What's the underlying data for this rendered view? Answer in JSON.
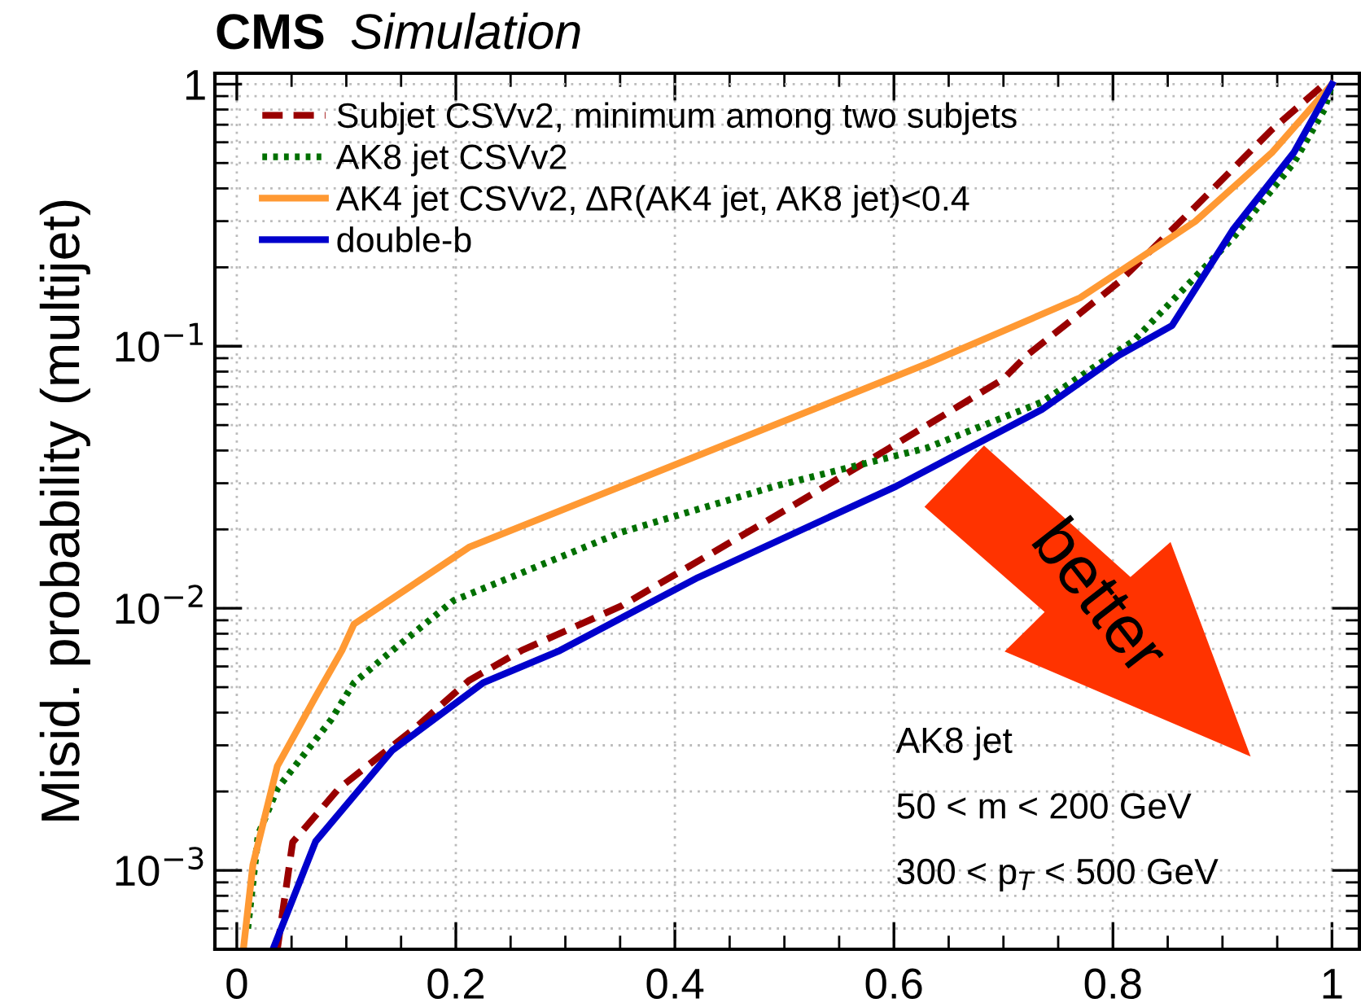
{
  "chart_data": {
    "type": "line",
    "title": "CMS",
    "subtitle": "Simulation",
    "ylabel": "Misid. probability (multijet)",
    "series": [
      {
        "name": "Subjet CSVv2, minimum among two subjets",
        "color": "#990000",
        "line_style": "dashed",
        "x": [
          0.037,
          0.051,
          0.093,
          0.163,
          0.212,
          0.26,
          0.351,
          0.491,
          0.596,
          0.7,
          0.721,
          0.756,
          0.805,
          0.875,
          0.945,
          0.993
        ],
        "values": [
          0.0005,
          0.00128,
          0.00205,
          0.0035,
          0.0053,
          0.0069,
          0.0102,
          0.0224,
          0.0409,
          0.075,
          0.092,
          0.12,
          0.175,
          0.34,
          0.67,
          1
        ]
      },
      {
        "name": "AK8 jet CSVv2",
        "color": "#007000",
        "line_style": "dotted",
        "x": [
          0.01,
          0.0196,
          0.037,
          0.086,
          0.107,
          0.142,
          0.198,
          0.351,
          0.491,
          0.63,
          0.735,
          0.819,
          0.91,
          0.965,
          0.993,
          1.0
        ],
        "values": [
          0.0006,
          0.00137,
          0.00205,
          0.00375,
          0.0052,
          0.0069,
          0.0107,
          0.0195,
          0.0292,
          0.0409,
          0.0612,
          0.105,
          0.26,
          0.5,
          0.8,
          1
        ]
      },
      {
        "name": "AK4 jet CSVv2, ΔR(AK4 jet, AK8 jet)<0.4",
        "color": "#ff9933",
        "line_style": "solid",
        "x": [
          0.006,
          0.0147,
          0.037,
          0.072,
          0.096,
          0.107,
          0.212,
          0.351,
          0.491,
          0.63,
          0.77,
          0.875,
          0.945,
          1.0
        ],
        "values": [
          0.0005,
          0.00105,
          0.0025,
          0.0046,
          0.0069,
          0.0087,
          0.0171,
          0.0292,
          0.0501,
          0.0857,
          0.153,
          0.299,
          0.547,
          1
        ]
      },
      {
        "name": "double-b",
        "color": "#0000cc",
        "line_style": "solid",
        "x": [
          0.033,
          0.072,
          0.142,
          0.225,
          0.295,
          0.421,
          0.602,
          0.735,
          0.805,
          0.854,
          0.91,
          0.965,
          1.0
        ],
        "values": [
          0.0005,
          0.00129,
          0.00287,
          0.0052,
          0.0069,
          0.0131,
          0.0292,
          0.0573,
          0.092,
          0.12,
          0.28,
          0.547,
          1
        ]
      }
    ],
    "xlim": [
      -0.02,
      1.025
    ],
    "xticks": [
      0,
      0.2,
      0.4,
      0.6,
      0.8,
      1
    ],
    "ylim": [
      0.0005,
      1.1
    ],
    "log": true,
    "yticks": [
      {
        "value": 0.001,
        "label": "10$^{−3}$"
      },
      {
        "value": 0.01,
        "label": "10$^{−2}$"
      },
      {
        "value": 0.1,
        "label": "10$^{−1}$"
      },
      1
    ],
    "grid": true,
    "legend": "top left",
    "marker": "none",
    "annotations": [
      "better",
      "AK8 jet",
      "50 < m < 200 GeV",
      "300 < p$_{T}$ < 500 GeV"
    ]
  }
}
